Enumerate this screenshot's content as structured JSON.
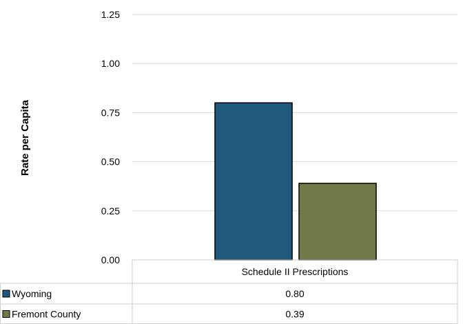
{
  "chart_data": {
    "type": "bar",
    "title": "",
    "xlabel": "",
    "ylabel": "Rate per Capita",
    "ylim": [
      0,
      1.25
    ],
    "yticks": [
      "0.00",
      "0.25",
      "0.50",
      "0.75",
      "1.00",
      "1.25"
    ],
    "grid": true,
    "categories": [
      "Schedule II Prescriptions"
    ],
    "series": [
      {
        "name": "Wyoming",
        "values": [
          0.8
        ],
        "value_labels": [
          "0.80"
        ],
        "color": "#1f5a7d"
      },
      {
        "name": "Fremont County",
        "values": [
          0.39
        ],
        "value_labels": [
          "0.39"
        ],
        "color": "#71784a"
      }
    ],
    "data_table": true
  }
}
